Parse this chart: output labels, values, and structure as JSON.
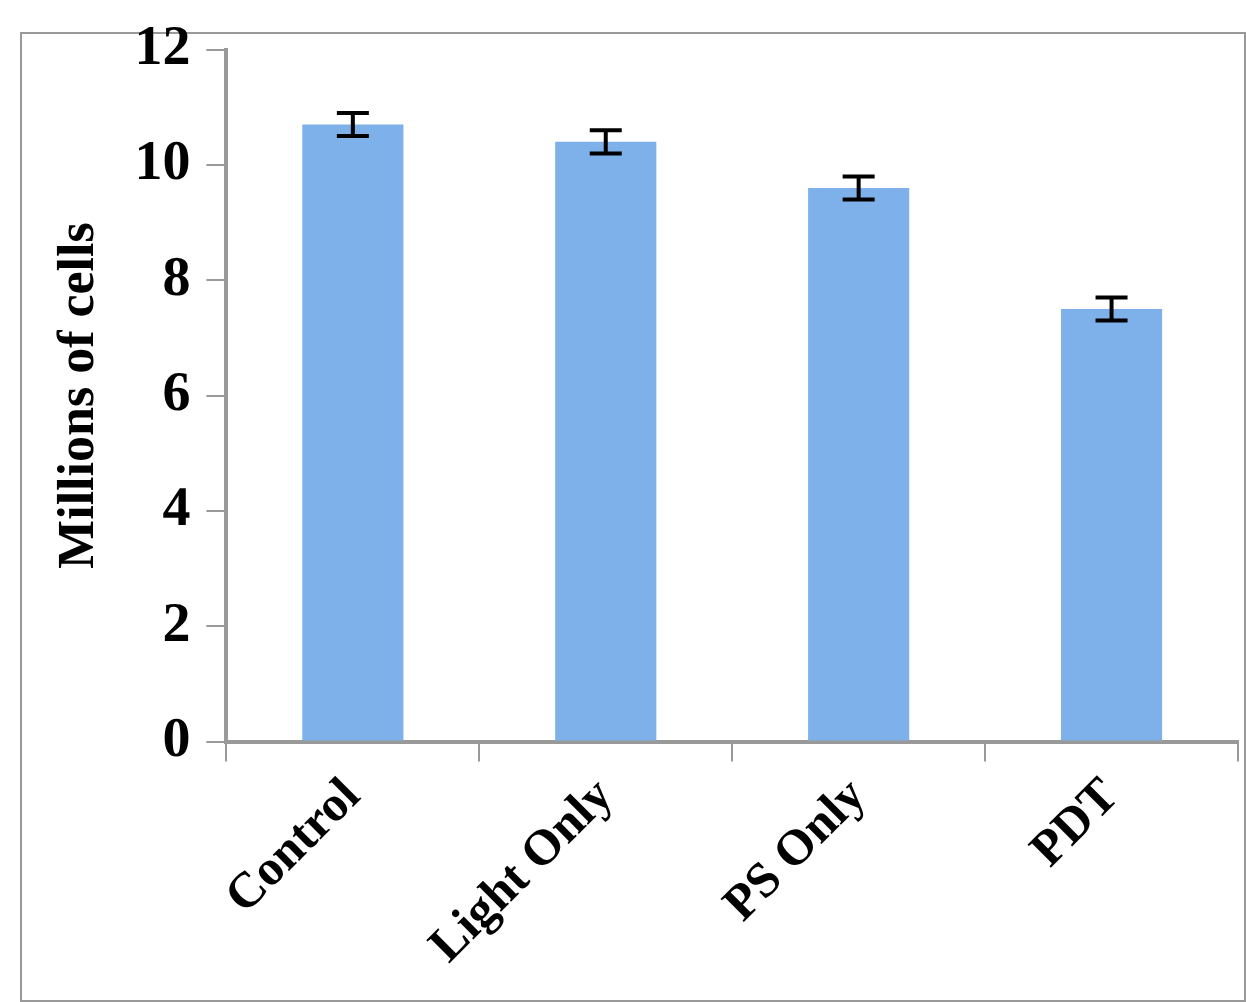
{
  "chart_data": {
    "type": "bar",
    "ylabel": "Millions of cells",
    "categories": [
      "Control",
      "Light Only",
      "PS Only",
      "PDT"
    ],
    "values": [
      10.7,
      10.4,
      9.6,
      7.5
    ],
    "errors": [
      0.2,
      0.2,
      0.2,
      0.2
    ],
    "color": "#7eb1ea",
    "ylim": [
      0,
      12
    ],
    "yticks": [
      0,
      2,
      4,
      6,
      8,
      10,
      12
    ],
    "grid": false,
    "legend": false
  }
}
